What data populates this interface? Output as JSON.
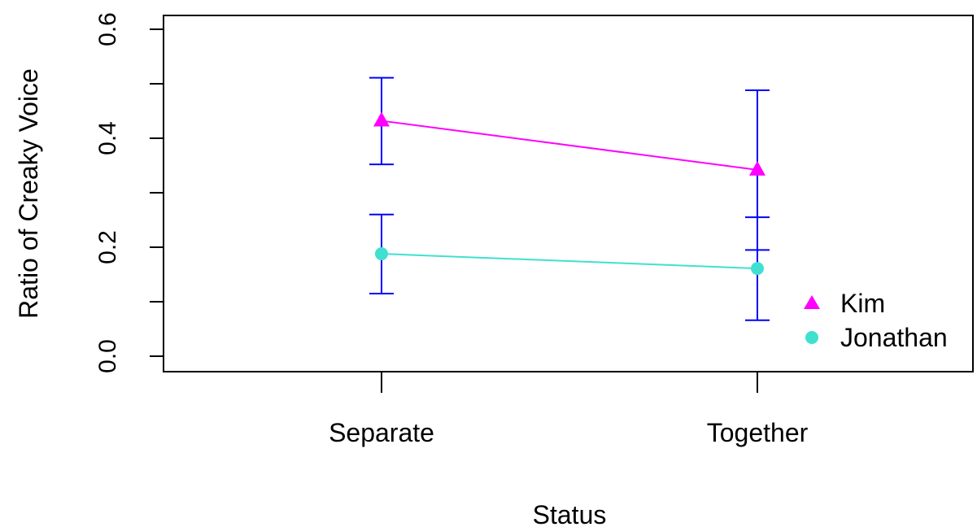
{
  "chart_data": {
    "type": "line",
    "title": "",
    "xlabel": "Status",
    "ylabel": "Ratio of Creaky Voice",
    "categories": [
      "Separate",
      "Together"
    ],
    "ylim": [
      -0.05,
      0.62
    ],
    "yticks": [
      "0.0",
      "0.2",
      "0.4",
      "0.6"
    ],
    "ytick_values": [
      0.0,
      0.2,
      0.4,
      0.6
    ],
    "minor_ticks": [
      0.1,
      0.3,
      0.5
    ],
    "grid": false,
    "legend_position": "bottom-right",
    "series": [
      {
        "name": "Kim",
        "marker": "triangle",
        "color": "#ff00ff",
        "values": [
          0.432,
          0.342
        ]
      },
      {
        "name": "Jonathan",
        "marker": "circle",
        "color": "#40e0d0",
        "values": [
          0.188,
          0.161
        ]
      }
    ],
    "error_bars": {
      "color": "#0000ff",
      "bars": [
        {
          "category": "Separate",
          "low": 0.352,
          "high": 0.511
        },
        {
          "category": "Separate",
          "low": 0.115,
          "high": 0.26
        },
        {
          "category": "Together",
          "low": 0.195,
          "high": 0.488
        },
        {
          "category": "Together",
          "low": 0.066,
          "high": 0.255
        }
      ]
    }
  }
}
